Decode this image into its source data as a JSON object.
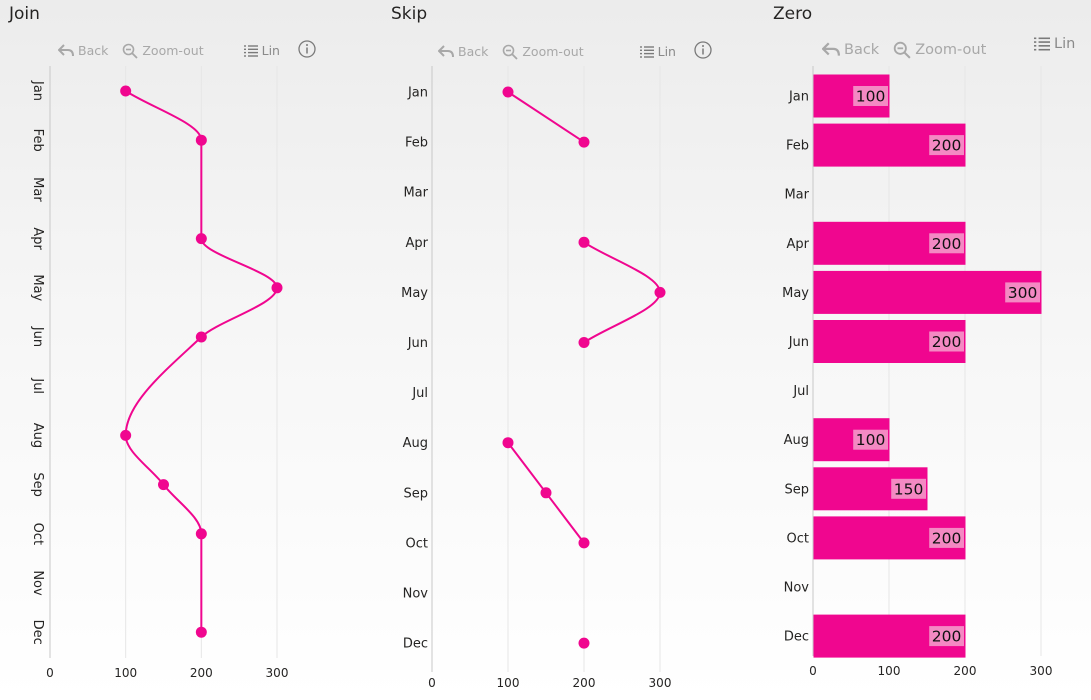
{
  "toolbar": {
    "back": "Back",
    "zoom_out": "Zoom-out",
    "lin": "Lin"
  },
  "colors": {
    "accent": "#f0068f",
    "label_bg": "#f489c3",
    "grid": "#e6e6e6",
    "axis": "#c8c8c8"
  },
  "chart_data": [
    {
      "title": "Join",
      "type": "line",
      "orientation": "vertical",
      "categories": [
        "Jan",
        "Feb",
        "Mar",
        "Apr",
        "May",
        "Jun",
        "Jul",
        "Aug",
        "Sep",
        "Oct",
        "Nov",
        "Dec"
      ],
      "values": [
        100,
        200,
        null,
        200,
        300,
        200,
        null,
        100,
        150,
        200,
        null,
        200
      ],
      "missing": "join",
      "xticks": [
        0,
        100,
        200,
        300
      ],
      "xlim": [
        0,
        300
      ]
    },
    {
      "title": "Skip",
      "type": "line",
      "orientation": "vertical",
      "categories": [
        "Jan",
        "Feb",
        "Mar",
        "Apr",
        "May",
        "Jun",
        "Jul",
        "Aug",
        "Sep",
        "Oct",
        "Nov",
        "Dec"
      ],
      "values": [
        100,
        200,
        null,
        200,
        300,
        200,
        null,
        100,
        150,
        200,
        null,
        200
      ],
      "missing": "skip",
      "xticks": [
        0,
        100,
        200,
        300
      ],
      "xlim": [
        0,
        300
      ]
    },
    {
      "title": "Zero",
      "type": "bar",
      "orientation": "horizontal",
      "categories": [
        "Jan",
        "Feb",
        "Mar",
        "Apr",
        "May",
        "Jun",
        "Jul",
        "Aug",
        "Sep",
        "Oct",
        "Nov",
        "Dec"
      ],
      "values": [
        100,
        200,
        null,
        200,
        300,
        200,
        null,
        100,
        150,
        200,
        null,
        200
      ],
      "missing": "zero",
      "xticks": [
        0,
        100,
        200,
        300
      ],
      "xlim": [
        0,
        300
      ]
    }
  ]
}
